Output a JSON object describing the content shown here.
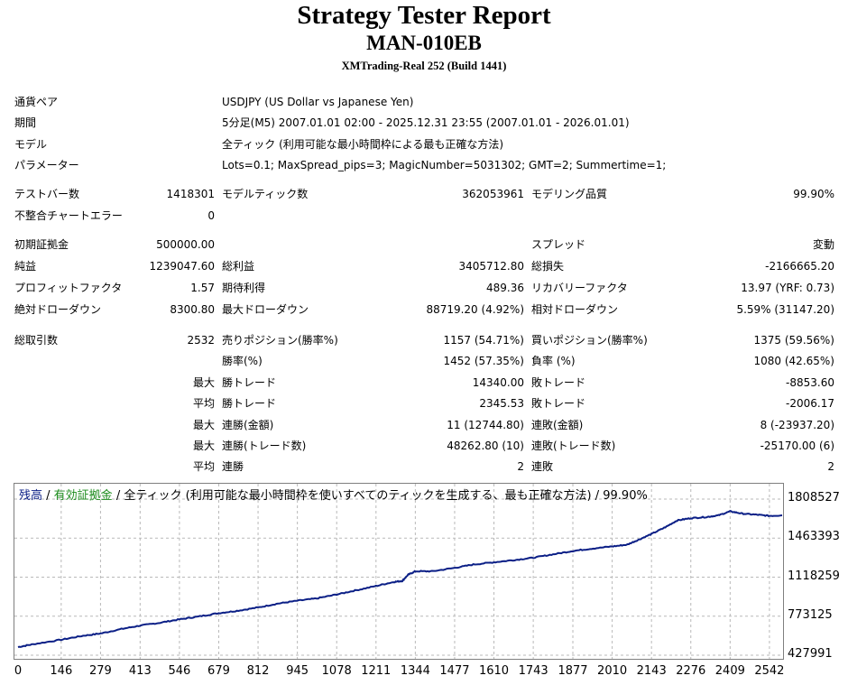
{
  "header": {
    "title": "Strategy Tester Report",
    "ea_name": "MAN-010EB",
    "server": "XMTrading-Real 252 (Build 1441)"
  },
  "info": {
    "pair_label": "通貨ペア",
    "pair_value": "USDJPY (US Dollar vs Japanese Yen)",
    "period_label": "期間",
    "period_value": "5分足(M5) 2007.01.01 02:00 - 2025.12.31 23:55 (2007.01.01 - 2026.01.01)",
    "model_label": "モデル",
    "model_value": "全ティック (利用可能な最小時間枠による最も正確な方法)",
    "params_label": "パラメーター",
    "params_value": "Lots=0.1; MaxSpread_pips=3; MagicNumber=5031302; GMT=2; Summertime=1;"
  },
  "stats": {
    "bars_label": "テストバー数",
    "bars_value": "1418301",
    "ticks_label": "モデルティック数",
    "ticks_value": "362053961",
    "quality_label": "モデリング品質",
    "quality_value": "99.90%",
    "mismatch_label": "不整合チャートエラー",
    "mismatch_value": "0",
    "deposit_label": "初期証拠金",
    "deposit_value": "500000.00",
    "spread_label": "スプレッド",
    "spread_value": "変動",
    "net_label": "純益",
    "net_value": "1239047.60",
    "gross_profit_label": "総利益",
    "gross_profit_value": "3405712.80",
    "gross_loss_label": "総損失",
    "gross_loss_value": "-2166665.20",
    "pf_label": "プロフィットファクタ",
    "pf_value": "1.57",
    "expected_label": "期待利得",
    "expected_value": "489.36",
    "recovery_label": "リカバリーファクタ",
    "recovery_value": "13.97 (YRF: 0.73)",
    "abs_dd_label": "絶対ドローダウン",
    "abs_dd_value": "8300.80",
    "max_dd_label": "最大ドローダウン",
    "max_dd_value": "88719.20 (4.92%)",
    "rel_dd_label": "相対ドローダウン",
    "rel_dd_value": "5.59% (31147.20)",
    "total_trades_label": "総取引数",
    "total_trades_value": "2532",
    "short_label": "売りポジション(勝率%)",
    "short_value": "1157 (54.71%)",
    "long_label": "買いポジション(勝率%)",
    "long_value": "1375 (59.56%)",
    "win_rate_label": "勝率(%)",
    "win_rate_value": "1452 (57.35%)",
    "loss_rate_label": "負率 (%)",
    "loss_rate_value": "1080 (42.65%)",
    "max_label": "最大",
    "avg_label": "平均",
    "win_trade_label": "勝トレード",
    "loss_trade_label": "敗トレード",
    "max_win_value": "14340.00",
    "max_loss_value": "-8853.60",
    "avg_win_value": "2345.53",
    "avg_loss_value": "-2006.17",
    "cons_win_money_label": "連勝(金額)",
    "cons_win_money_value": "11 (12744.80)",
    "cons_loss_money_label": "連敗(金額)",
    "cons_loss_money_value": "8 (-23937.20)",
    "cons_win_trades_label": "連勝(トレード数)",
    "cons_win_trades_value": "48262.80 (10)",
    "cons_loss_trades_label": "連敗(トレード数)",
    "cons_loss_trades_value": "-25170.00 (6)",
    "avg_cons_win_label": "連勝",
    "avg_cons_win_value": "2",
    "avg_cons_loss_label": "連敗",
    "avg_cons_loss_value": "2"
  },
  "chart_data": {
    "type": "line",
    "legend": {
      "balance": "残高",
      "sep": " / ",
      "equity": "有効証拠金",
      "rest": " / 全ティック (利用可能な最小時間枠を使いすべてのティックを生成する、最も正確な方法) / 99.90%"
    },
    "yticks": [
      "1808527",
      "1463393",
      "1118259",
      "773125",
      "427991"
    ],
    "ylim": [
      427991,
      1808527
    ],
    "xticks": [
      "0",
      "146",
      "279",
      "413",
      "546",
      "679",
      "812",
      "945",
      "1078",
      "1211",
      "1344",
      "1477",
      "1610",
      "1743",
      "1877",
      "2010",
      "2143",
      "2276",
      "2409",
      "2542"
    ],
    "xlim": [
      0,
      2585
    ],
    "grid": true,
    "colors": {
      "balance": "#0b1f86",
      "equity": "#1a8a1a"
    },
    "series": [
      {
        "name": "残高",
        "x": [
          0,
          50,
          146,
          220,
          279,
          350,
          413,
          480,
          546,
          610,
          679,
          740,
          812,
          880,
          945,
          1010,
          1078,
          1140,
          1211,
          1270,
          1300,
          1320,
          1344,
          1400,
          1477,
          1540,
          1610,
          1680,
          1743,
          1810,
          1877,
          1940,
          2010,
          2060,
          2100,
          2143,
          2190,
          2230,
          2276,
          2330,
          2370,
          2409,
          2450,
          2500,
          2542,
          2585
        ],
        "values": [
          500000,
          525000,
          565000,
          600000,
          620000,
          660000,
          690000,
          715000,
          745000,
          770000,
          800000,
          820000,
          850000,
          885000,
          910000,
          930000,
          965000,
          1000000,
          1040000,
          1075000,
          1085000,
          1140000,
          1170000,
          1170000,
          1200000,
          1230000,
          1250000,
          1270000,
          1290000,
          1320000,
          1350000,
          1370000,
          1390000,
          1405000,
          1450000,
          1500000,
          1560000,
          1620000,
          1640000,
          1650000,
          1665000,
          1700000,
          1680000,
          1670000,
          1660000,
          1665000
        ]
      }
    ]
  }
}
